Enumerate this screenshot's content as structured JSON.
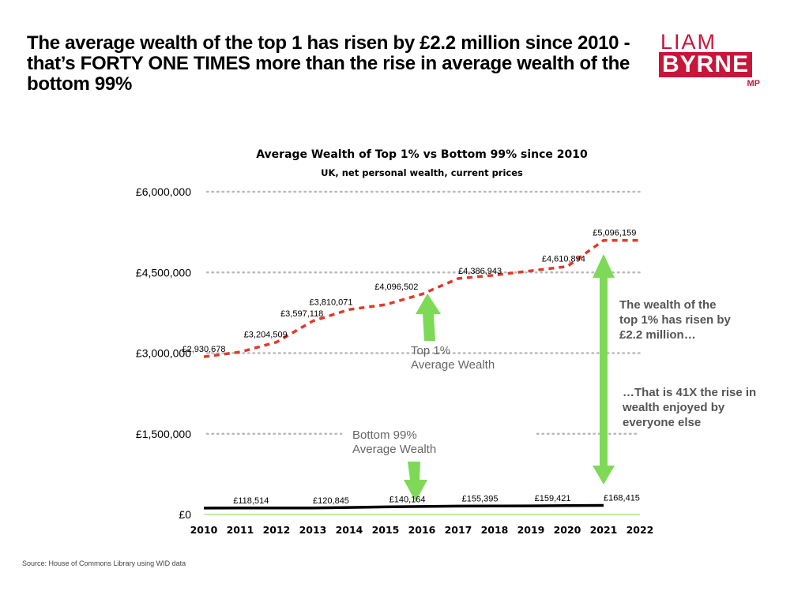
{
  "headline": "The average wealth of the top 1 has risen by £2.2 million since 2010 - that’s FORTY ONE TIMES more than the rise in average wealth of the bottom 99%",
  "logo": {
    "line1": "LIAM",
    "line2": "BYRNE",
    "line3": "MP"
  },
  "source": "Source: House of Commons Library using WID data",
  "colors": {
    "top": "#e03a2a",
    "bottom": "#000000",
    "arrow": "#7ed957",
    "brand": "#c8163a",
    "grid": "#bbbbbb"
  },
  "chart_data": {
    "type": "line",
    "title": "Average Wealth of Top 1% vs Bottom 99% since 2010",
    "subtitle": "UK, net personal wealth, current prices",
    "x": [
      2010,
      2011,
      2012,
      2013,
      2014,
      2015,
      2016,
      2017,
      2018,
      2019,
      2020,
      2021,
      2022
    ],
    "xtick_labels": [
      "2010",
      "2011",
      "2012",
      "2013",
      "2014",
      "2015",
      "2016",
      "2017",
      "2018",
      "2019",
      "2020",
      "2021",
      "2022"
    ],
    "ylim": [
      0,
      6000000
    ],
    "yticks": [
      0,
      1500000,
      3000000,
      4500000,
      6000000
    ],
    "ytick_labels": [
      "£0",
      "£1,500,000",
      "£3,000,000",
      "£4,500,000",
      "£6,000,000"
    ],
    "grid": "horizontal dotted",
    "series": [
      {
        "key": "top",
        "style": "dashed red",
        "x": [
          2010,
          2011,
          2012,
          2013,
          2014,
          2015,
          2016,
          2017,
          2018,
          2019,
          2020,
          2021,
          2022
        ],
        "values": [
          2930678,
          3020000,
          3204509,
          3597118,
          3810071,
          3900000,
          4096502,
          4386943,
          4450000,
          4530000,
          4610894,
          5096159,
          5096159
        ]
      },
      {
        "key": "bottom",
        "style": "solid black",
        "x": [
          2010,
          2011,
          2012,
          2013,
          2014,
          2015,
          2016,
          2017,
          2018,
          2019,
          2020,
          2021
        ],
        "values": [
          118514,
          119600,
          120000,
          120845,
          130000,
          140164,
          148000,
          155395,
          157000,
          159421,
          164000,
          168415
        ]
      }
    ],
    "data_labels": [
      {
        "text": "£2,930,678",
        "x": 2010,
        "y": 2930678
      },
      {
        "text": "£3,204,509",
        "x": 2011.7,
        "y": 3204509
      },
      {
        "text": "£3,597,118",
        "x": 2012.7,
        "y": 3597118
      },
      {
        "text": "£3,810,071",
        "x": 2013.5,
        "y": 3810071
      },
      {
        "text": "£4,096,502",
        "x": 2015.3,
        "y": 4096502
      },
      {
        "text": "£4,386,943",
        "x": 2017.6,
        "y": 4386943
      },
      {
        "text": "£4,610,894",
        "x": 2019.9,
        "y": 4610894
      },
      {
        "text": "£5,096,159",
        "x": 2021.3,
        "y": 5096159
      },
      {
        "text": "£118,514",
        "x": 2011.3,
        "y": 118514
      },
      {
        "text": "£120,845",
        "x": 2013.5,
        "y": 120845
      },
      {
        "text": "£140,164",
        "x": 2015.6,
        "y": 140164
      },
      {
        "text": "£155,395",
        "x": 2017.6,
        "y": 155395
      },
      {
        "text": "£159,421",
        "x": 2019.6,
        "y": 159421
      },
      {
        "text": "£168,415",
        "x": 2021.5,
        "y": 168415
      }
    ],
    "annotations": {
      "top_label": [
        "Top 1%",
        "Average Wealth"
      ],
      "bottom_label": [
        "Bottom 99%",
        "Average Wealth"
      ],
      "note1": [
        "The wealth of the",
        "top 1% has risen by",
        "£2.2 million…"
      ],
      "note2": [
        "…That is 41X the rise in",
        "wealth enjoyed by",
        "everyone else"
      ]
    }
  }
}
